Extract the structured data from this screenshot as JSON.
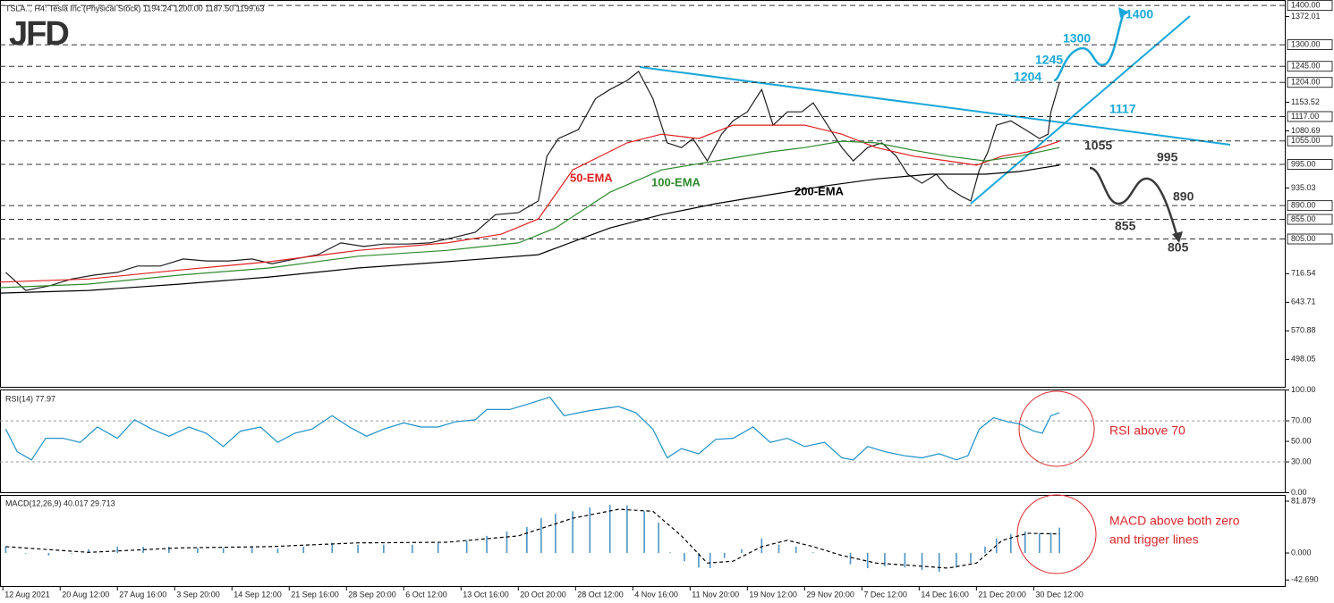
{
  "logo": "JFD",
  "scenarios": [
    {
      "color": "#19a7d8",
      "labels": [
        "1400",
        "1300",
        "1245",
        "1204",
        "1117"
      ]
    },
    {
      "color": "#3a3a3a",
      "labels": [
        "1055",
        "995",
        "890",
        "855",
        "805"
      ]
    }
  ],
  "chart_data": [
    {
      "type": "line",
      "title": "TSLA.., H4:  Tesla Inc (Physical Stock)  1194.24 1200.00 1187.50 1199.63",
      "xlim": [
        0,
        449
      ],
      "ylim": [
        426,
        1414
      ],
      "xticks": [
        {
          "value": 1,
          "label": "12 Aug 2021"
        },
        {
          "value": 21,
          "label": "20 Aug 12:00"
        },
        {
          "value": 41,
          "label": "27 Aug 16:00"
        },
        {
          "value": 61,
          "label": "3 Sep 20:00"
        },
        {
          "value": 81,
          "label": "14 Sep 12:00"
        },
        {
          "value": 101,
          "label": "21 Sep 16:00"
        },
        {
          "value": 121,
          "label": "28 Sep 20:00"
        },
        {
          "value": 141,
          "label": "6 Oct 12:00"
        },
        {
          "value": 161,
          "label": "13 Oct 16:00"
        },
        {
          "value": 181,
          "label": "20 Oct 20:00"
        },
        {
          "value": 201,
          "label": "28 Oct 12:00"
        },
        {
          "value": 221,
          "label": "4 Nov 16:00"
        },
        {
          "value": 241,
          "label": "11 Nov 20:00"
        },
        {
          "value": 261,
          "label": "19 Nov 12:00"
        },
        {
          "value": 281,
          "label": "29 Nov 20:00"
        },
        {
          "value": 301,
          "label": "7 Dec 12:00"
        },
        {
          "value": 321,
          "label": "14 Dec 16:00"
        },
        {
          "value": 341,
          "label": "21 Dec 20:00"
        },
        {
          "value": 361,
          "label": "30 Dec 12:00"
        }
      ],
      "yticks": [
        1372.01,
        1153.52,
        1080.69,
        935.03,
        716.54,
        643.71,
        570.88,
        498.05
      ],
      "levels": [
        {
          "value": 1400,
          "label": "1400.00"
        },
        {
          "value": 1300,
          "label": "1300.00"
        },
        {
          "value": 1245,
          "label": "1245.00"
        },
        {
          "value": 1204,
          "label": "1204.00"
        },
        {
          "value": 1117,
          "label": "1117.00"
        },
        {
          "value": 1055,
          "label": "1055.00"
        },
        {
          "value": 995,
          "label": "995.00"
        },
        {
          "value": 890,
          "label": "890.00"
        },
        {
          "value": 855,
          "label": "855.00"
        },
        {
          "value": 805,
          "label": "805.00"
        }
      ],
      "series": [
        {
          "color": "#1e1e1e",
          "x": [
            2,
            9,
            17,
            25,
            33,
            41,
            48,
            56,
            64,
            72,
            80,
            88,
            95,
            103,
            111,
            119,
            127,
            134,
            142,
            150,
            158,
            166,
            173,
            181,
            188,
            191,
            195,
            202,
            208,
            213,
            219,
            223,
            228,
            233,
            238,
            242,
            247,
            252,
            256,
            261,
            266,
            270,
            275,
            280,
            284,
            289,
            294,
            298,
            303,
            308,
            313,
            317,
            322,
            327,
            331,
            336,
            339,
            342,
            345,
            348,
            353,
            358,
            363,
            366,
            367,
            370
          ],
          "values": [
            720,
            674,
            685,
            703,
            713,
            720,
            736,
            736,
            754,
            749,
            749,
            754,
            742,
            754,
            765,
            795,
            786,
            792,
            792,
            795,
            808,
            822,
            867,
            872,
            902,
            1016,
            1061,
            1084,
            1163,
            1186,
            1209,
            1232,
            1163,
            1050,
            1038,
            1061,
            1004,
            1072,
            1106,
            1129,
            1186,
            1095,
            1129,
            1129,
            1152,
            1095,
            1038,
            1004,
            1038,
            1050,
            1016,
            970,
            947,
            970,
            936,
            913,
            902,
            981,
            1027,
            1095,
            1106,
            1084,
            1061,
            1072,
            1129,
            1204
          ]
        },
        {
          "name": "50-EMA",
          "color": "#e02020",
          "x": [
            0,
            31,
            63,
            94,
            125,
            156,
            175,
            188,
            200,
            219,
            231,
            244,
            256,
            269,
            281,
            294,
            306,
            319,
            331,
            341,
            350,
            359,
            370
          ],
          "values": [
            695,
            703,
            726,
            747,
            776,
            795,
            817,
            856,
            981,
            1050,
            1072,
            1061,
            1095,
            1095,
            1095,
            1072,
            1038,
            1016,
            1004,
            993,
            1016,
            1027,
            1054
          ]
        },
        {
          "name": "100-EMA",
          "color": "#2e8b2e",
          "x": [
            0,
            31,
            63,
            94,
            125,
            156,
            181,
            194,
            213,
            231,
            250,
            269,
            281,
            294,
            306,
            319,
            331,
            344,
            356,
            370
          ],
          "values": [
            681,
            690,
            713,
            731,
            761,
            776,
            795,
            833,
            924,
            981,
            1004,
            1027,
            1038,
            1054,
            1050,
            1031,
            1016,
            1004,
            1016,
            1038
          ]
        },
        {
          "name": "200-EMA",
          "color": "#000000",
          "x": [
            0,
            31,
            63,
            94,
            125,
            156,
            188,
            213,
            231,
            250,
            269,
            288,
            306,
            325,
            344,
            356,
            370
          ],
          "values": [
            667,
            674,
            690,
            708,
            731,
            747,
            765,
            833,
            867,
            895,
            918,
            940,
            958,
            970,
            970,
            977,
            993
          ]
        }
      ]
    },
    {
      "type": "line",
      "title": "RSI(14) 77.97",
      "annotation": "RSI above 70",
      "xlim": [
        0,
        449
      ],
      "ylim": [
        -0.4,
        100.5
      ],
      "yticks": [
        {
          "value": 100,
          "label": "100.00"
        },
        {
          "value": 70,
          "label": "70.00"
        },
        {
          "value": 50,
          "label": "50.00"
        },
        {
          "value": 30,
          "label": "30.00"
        },
        {
          "value": 0,
          "label": "0.00"
        }
      ],
      "levels": [
        70,
        30
      ],
      "series": [
        {
          "color": "#1e90c8",
          "x": [
            2,
            6,
            11,
            16,
            22,
            28,
            34,
            41,
            47,
            53,
            59,
            66,
            72,
            78,
            84,
            91,
            97,
            103,
            109,
            116,
            122,
            128,
            134,
            141,
            147,
            153,
            159,
            166,
            170,
            178,
            184,
            192,
            197,
            206,
            216,
            222,
            228,
            233,
            238,
            244,
            250,
            256,
            263,
            269,
            275,
            281,
            288,
            294,
            298,
            303,
            309,
            316,
            322,
            328,
            334,
            338,
            342,
            347,
            352,
            356,
            361,
            364,
            367,
            370
          ],
          "values": [
            62,
            40,
            32,
            53,
            53,
            49,
            64,
            53,
            71,
            62,
            55,
            64,
            58,
            45,
            60,
            64,
            49,
            58,
            62,
            75,
            64,
            55,
            62,
            68,
            64,
            64,
            69,
            71,
            81,
            81,
            86,
            93,
            75,
            80,
            84,
            78,
            62,
            34,
            43,
            38,
            52,
            53,
            64,
            49,
            53,
            45,
            49,
            34,
            32,
            45,
            40,
            36,
            34,
            38,
            32,
            36,
            62,
            73,
            69,
            67,
            60,
            58,
            75,
            78
          ]
        }
      ]
    },
    {
      "type": "bar",
      "title": "MACD(12,26,9) 40.017 29.713",
      "annotation": [
        "MACD above both zero",
        "and trigger lines"
      ],
      "xlim": [
        0,
        449
      ],
      "ylim": [
        -53.7,
        91.8
      ],
      "yticks": [
        81.879,
        {
          "value": 0,
          "label": "0.000"
        },
        {
          "value": -42.69,
          "label": "-42.690"
        }
      ],
      "series": [
        {
          "type": "bar",
          "color": "#4f94c4",
          "x": [
            2,
            9,
            17,
            25,
            31,
            41,
            50,
            59,
            69,
            78,
            88,
            97,
            106,
            116,
            125,
            134,
            144,
            153,
            163,
            170,
            177,
            184,
            189,
            194,
            200,
            206,
            213,
            219,
            225,
            230,
            234,
            239,
            244,
            248,
            253,
            259,
            266,
            272,
            278,
            284,
            291,
            297,
            303,
            309,
            316,
            322,
            328,
            334,
            339,
            344,
            348,
            353,
            358,
            363,
            367,
            370
          ],
          "values": [
            10,
            -1,
            -4,
            -1,
            6,
            10,
            10,
            10,
            8,
            8,
            10,
            7,
            10,
            16,
            13,
            13,
            13,
            16,
            20,
            27,
            34,
            41,
            55,
            62,
            66,
            72,
            76,
            75,
            66,
            48,
            1,
            -13,
            -23,
            -24,
            -8,
            6,
            23,
            13,
            10,
            1,
            -1,
            -18,
            -24,
            -21,
            -23,
            -27,
            -30,
            -23,
            -16,
            10,
            23,
            30,
            34,
            31,
            32,
            40
          ]
        },
        {
          "type": "line",
          "dashed": true,
          "color": "#000000",
          "x": [
            2,
            31,
            63,
            94,
            125,
            156,
            181,
            200,
            216,
            228,
            238,
            247,
            256,
            266,
            275,
            284,
            294,
            306,
            319,
            331,
            341,
            350,
            359,
            370
          ],
          "values": [
            10,
            1,
            8,
            10,
            16,
            17,
            27,
            55,
            69,
            66,
            27,
            -16,
            -13,
            10,
            20,
            10,
            -4,
            -16,
            -20,
            -24,
            -16,
            20,
            31,
            30
          ]
        }
      ]
    }
  ]
}
